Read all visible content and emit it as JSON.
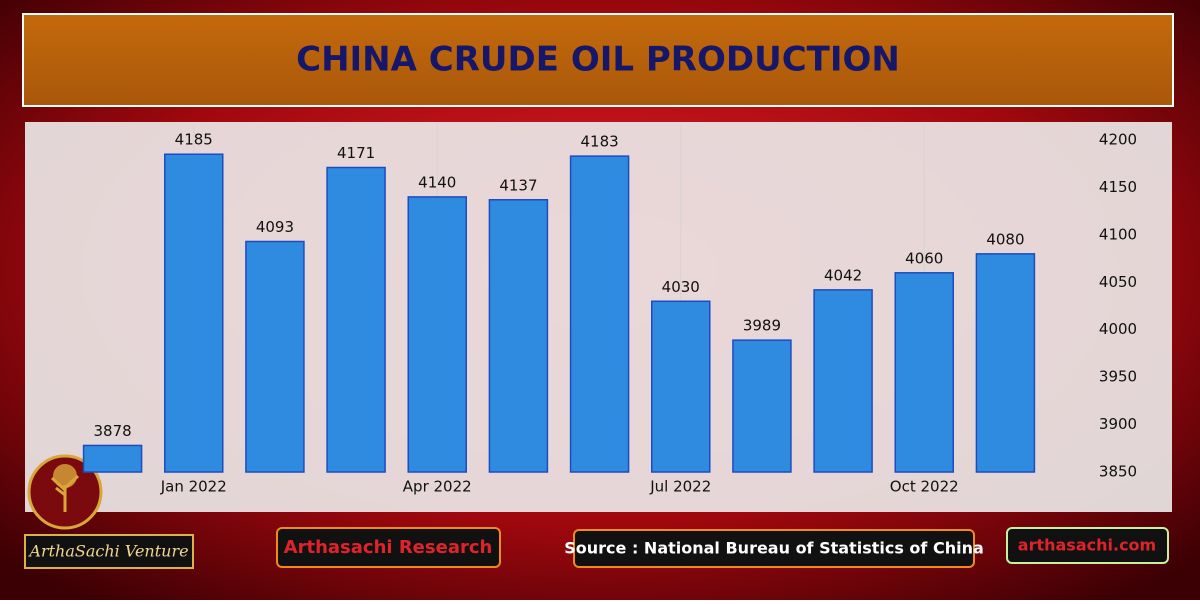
{
  "chart_data": {
    "type": "bar",
    "title": "CHINA CRUDE OIL PRODUCTION",
    "categories": [
      null,
      "Jan 2022",
      null,
      null,
      "Apr 2022",
      null,
      null,
      "Jul 2022",
      null,
      null,
      "Oct 2022",
      null
    ],
    "values": [
      3878,
      4185,
      4093,
      4171,
      4140,
      4137,
      4183,
      4030,
      3989,
      4042,
      4060,
      4080
    ],
    "color": "#2f8be0",
    "ylim": [
      3850,
      4200
    ],
    "yticks": [
      3850,
      3900,
      3950,
      4000,
      4050,
      4100,
      4150,
      4200
    ],
    "y_axis_side": "right",
    "source": "Source : National Bureau of Statistics of China"
  },
  "branding": {
    "logo_text": "ArthaSachi Venture",
    "research": "Arthasachi Research",
    "website": "arthasachi.com"
  }
}
